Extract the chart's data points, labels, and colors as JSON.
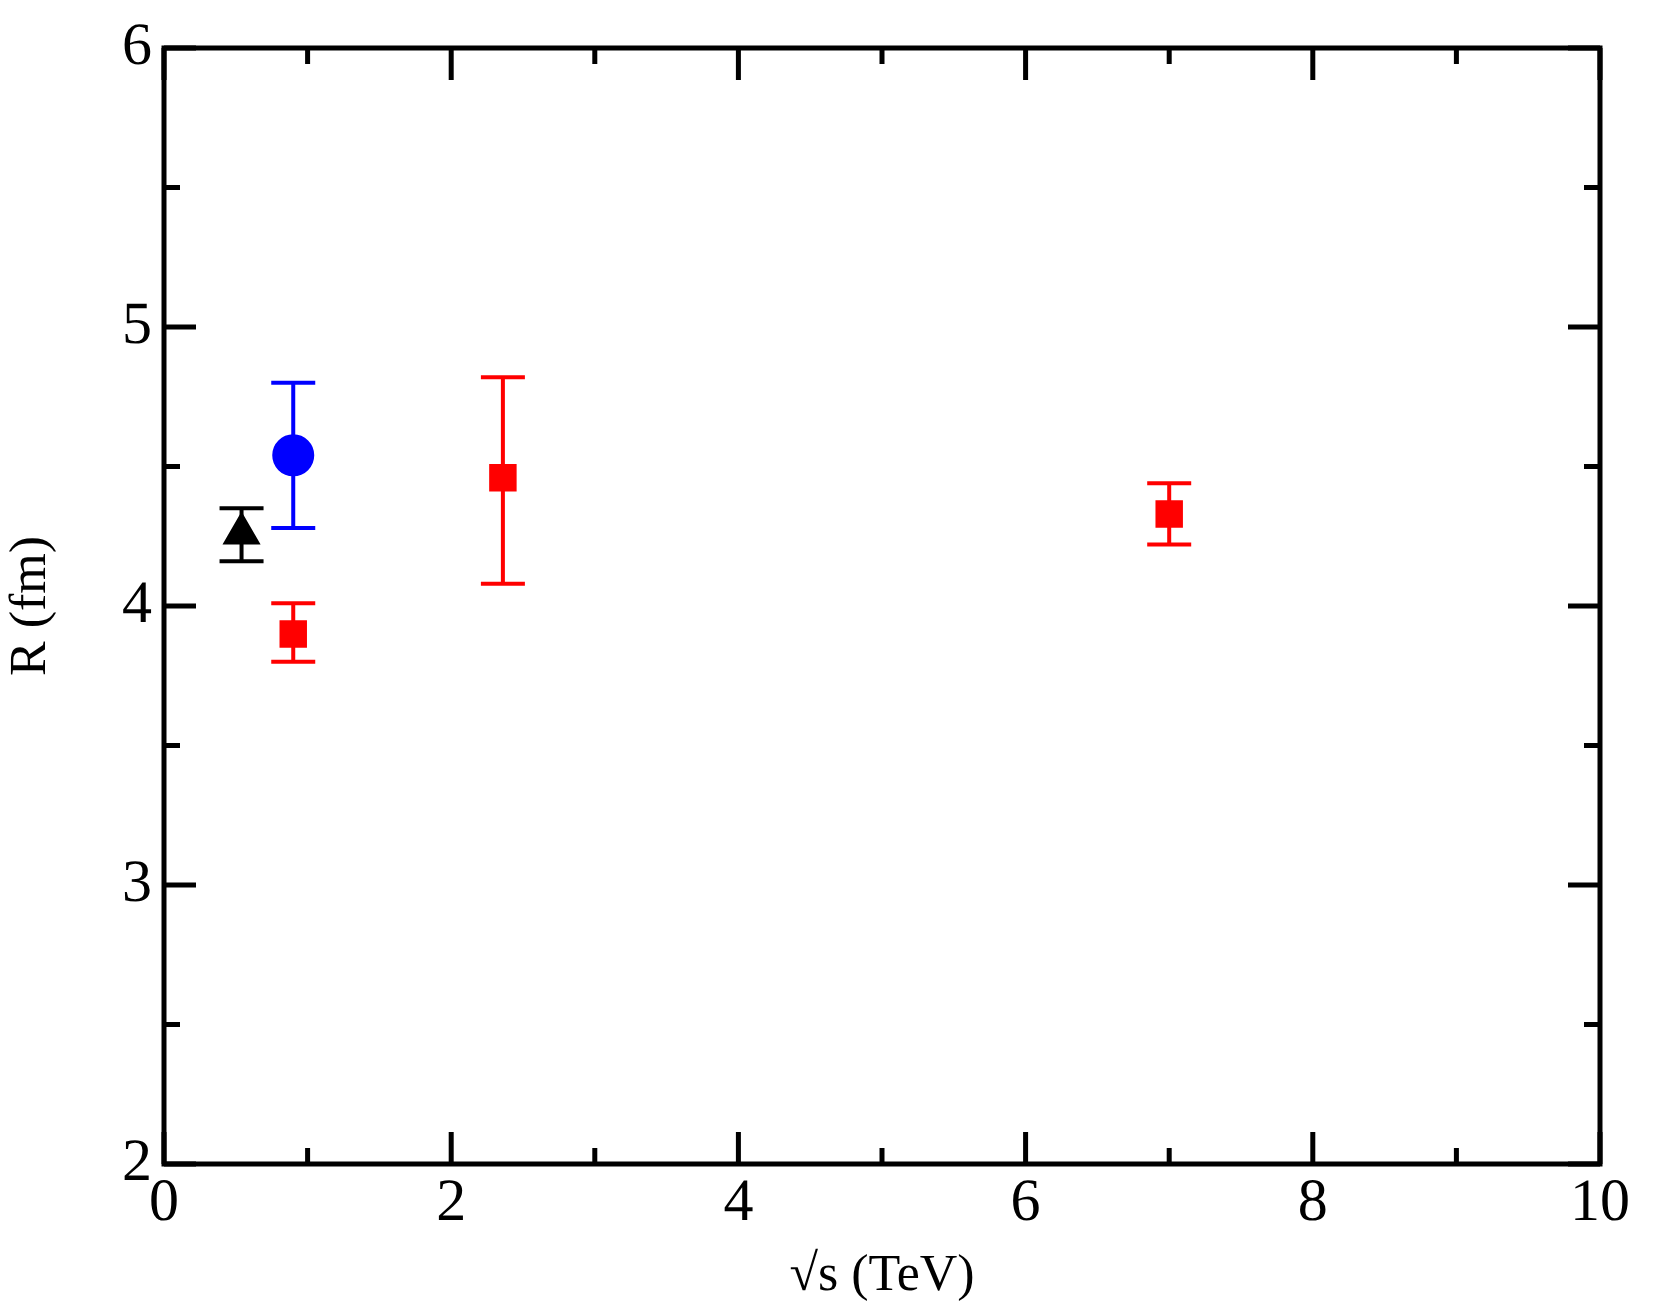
{
  "chart_data": {
    "type": "scatter",
    "xlabel": "√s (TeV)",
    "ylabel": "R (fm)",
    "xlim": [
      0,
      10
    ],
    "ylim": [
      2,
      6
    ],
    "xticks": [
      0,
      {
        "value": 1,
        "label": null
      },
      2,
      {
        "value": 3,
        "label": null
      },
      4,
      {
        "value": 5,
        "label": null
      },
      6,
      {
        "value": 7,
        "label": null
      },
      8,
      {
        "value": 9,
        "label": null
      },
      10
    ],
    "yticks": [
      2,
      {
        "value": 2.5,
        "label": null
      },
      3,
      {
        "value": 3.5,
        "label": null
      },
      4,
      {
        "value": 4.5,
        "label": null
      },
      5,
      {
        "value": 5.5,
        "label": null
      },
      6
    ],
    "grid": false,
    "legend": false,
    "series": [
      {
        "color": "#000000",
        "marker": "triangle",
        "x": [
          0.54
        ],
        "values": [
          4.26
        ],
        "errors": [
          [
            4.16,
            4.35
          ]
        ]
      },
      {
        "color": "#0000ff",
        "marker": "circle",
        "x": [
          0.9
        ],
        "values": [
          4.54
        ],
        "errors": [
          [
            4.28,
            4.8
          ]
        ]
      },
      {
        "color": "#ff0000",
        "marker": "square",
        "x": [
          0.9,
          2.36,
          7.0
        ],
        "values": [
          3.9,
          4.46,
          4.33
        ],
        "errors": [
          [
            3.8,
            4.01
          ],
          [
            4.08,
            4.82
          ],
          [
            4.22,
            4.44
          ]
        ]
      }
    ]
  }
}
